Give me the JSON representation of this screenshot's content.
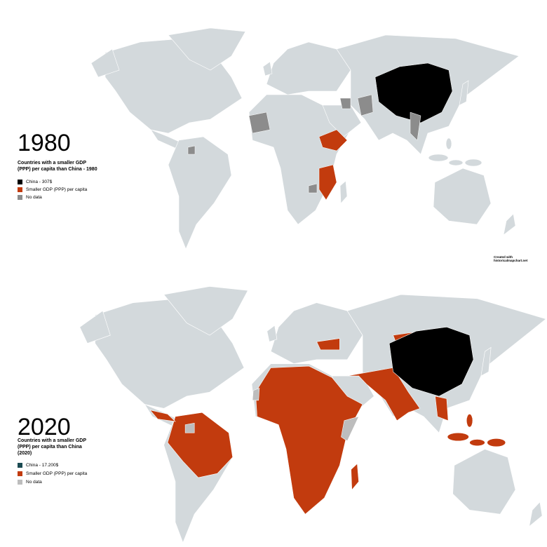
{
  "maps": [
    {
      "year": "1980",
      "legend": {
        "title": "Countries with a smaller GDP (PPP) per capita than China - 1980",
        "items": [
          {
            "label": "China - 307$",
            "color": "#000000"
          },
          {
            "label": "Smaller GDP (PPP) per capita",
            "color": "#c23b0e"
          },
          {
            "label": "No data",
            "color": "#8c8c8c"
          }
        ]
      }
    },
    {
      "year": "2020",
      "legend": {
        "title": "Countries with a smaller GDP (PPP) per capita than China (2020)",
        "items": [
          {
            "label": "China - 17.200$",
            "color": "#1b4a52"
          },
          {
            "label": "Smaller GDP (PPP) per capita",
            "color": "#c23b0e"
          },
          {
            "label": "No data",
            "color": "#bdbdbd"
          }
        ]
      }
    }
  ],
  "credit": "Created with historicalmapchart.net"
}
